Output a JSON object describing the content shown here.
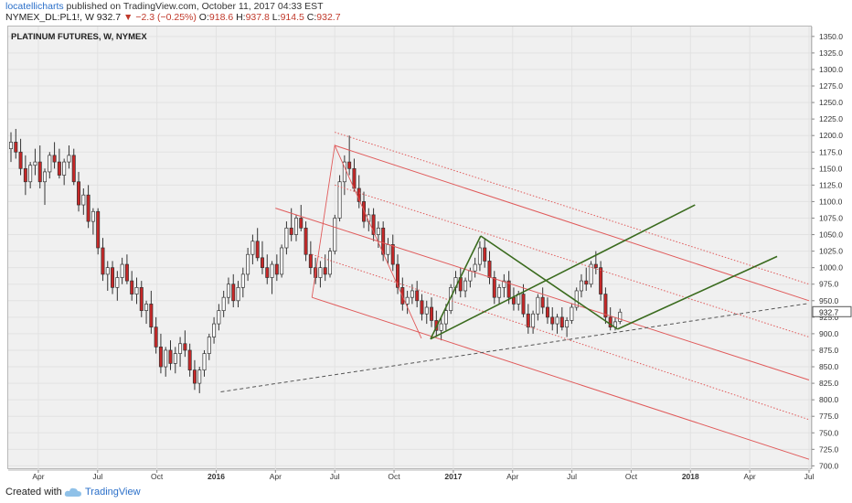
{
  "header": {
    "author": "locatellicharts",
    "published_text": "published on TradingView.com, October 11, 2017 04:33 EST",
    "symbol": "NYMEX_DL:PL1!, W",
    "last": "932.7",
    "change": "−2.3 (−0.25%)",
    "o_label": "O:",
    "o_value": "918.6",
    "h_label": "H:",
    "h_value": "937.8",
    "l_label": "L:",
    "l_value": "914.5",
    "c_label": "C:",
    "c_value": "932.7",
    "down_arrow": "▼"
  },
  "chart_title": "PLATINUM FUTURES, W, NYMEX",
  "footer": {
    "created_with": "Created with",
    "brand": "TradingView",
    "logo_icon": "tradingview-cloud-icon"
  },
  "colors": {
    "up_candle": "#ffffff",
    "down_candle": "#c62828",
    "pitchfork": "#e05a5a",
    "triangle": "#3a6b1e",
    "trendline": "#555555",
    "background": "#f0f0f0",
    "grid": "#e2e2e2"
  },
  "chart_data": {
    "type": "candlestick",
    "title": "PLATINUM FUTURES, W, NYMEX",
    "ylim": [
      695,
      1365
    ],
    "y_ticks": [
      700,
      725,
      750,
      775,
      800,
      825,
      850,
      875,
      900,
      925,
      950,
      975,
      1000,
      1025,
      1050,
      1075,
      1100,
      1125,
      1150,
      1175,
      1200,
      1225,
      1250,
      1275,
      1300,
      1325,
      1350
    ],
    "y_tick_labels": [
      "700.0",
      "725.0",
      "750.0",
      "775.0",
      "800.0",
      "825.0",
      "850.0",
      "875.0",
      "900.0",
      "925.0",
      "950.0",
      "975.0",
      "1000.0",
      "1025.0",
      "1050.0",
      "1075.0",
      "1100.0",
      "1125.0",
      "1150.0",
      "1175.0",
      "1200.0",
      "1225.0",
      "1250.0",
      "1275.0",
      "1300.0",
      "1325.0",
      "1350.0"
    ],
    "last_price_label": "932.7",
    "last_price": 932.7,
    "x_ticks": [
      {
        "label": "Apr",
        "week": 6
      },
      {
        "label": "Jul",
        "week": 19
      },
      {
        "label": "Oct",
        "week": 32
      },
      {
        "label": "2016",
        "week": 45
      },
      {
        "label": "Apr",
        "week": 58
      },
      {
        "label": "Jul",
        "week": 71
      },
      {
        "label": "Oct",
        "week": 84
      },
      {
        "label": "2017",
        "week": 97
      },
      {
        "label": "Apr",
        "week": 110
      },
      {
        "label": "Jul",
        "week": 123
      },
      {
        "label": "Oct",
        "week": 136
      },
      {
        "label": "2018",
        "week": 149
      },
      {
        "label": "Apr",
        "week": 162
      },
      {
        "label": "Jul",
        "week": 175
      }
    ],
    "x_week_range": [
      0,
      175
    ],
    "candles": [
      [
        1180,
        1205,
        1160,
        1190
      ],
      [
        1190,
        1210,
        1165,
        1175
      ],
      [
        1175,
        1195,
        1140,
        1150
      ],
      [
        1150,
        1170,
        1110,
        1130
      ],
      [
        1130,
        1160,
        1120,
        1155
      ],
      [
        1155,
        1180,
        1140,
        1160
      ],
      [
        1160,
        1185,
        1120,
        1130
      ],
      [
        1130,
        1150,
        1095,
        1145
      ],
      [
        1145,
        1175,
        1135,
        1170
      ],
      [
        1170,
        1190,
        1150,
        1160
      ],
      [
        1160,
        1180,
        1135,
        1140
      ],
      [
        1140,
        1165,
        1125,
        1160
      ],
      [
        1160,
        1185,
        1150,
        1170
      ],
      [
        1170,
        1180,
        1125,
        1130
      ],
      [
        1130,
        1145,
        1085,
        1095
      ],
      [
        1095,
        1120,
        1080,
        1110
      ],
      [
        1110,
        1125,
        1060,
        1070
      ],
      [
        1070,
        1090,
        1050,
        1085
      ],
      [
        1085,
        1090,
        1020,
        1030
      ],
      [
        1030,
        1045,
        980,
        990
      ],
      [
        990,
        1010,
        965,
        1000
      ],
      [
        1000,
        1010,
        960,
        970
      ],
      [
        970,
        995,
        950,
        985
      ],
      [
        985,
        1015,
        975,
        1005
      ],
      [
        1005,
        1020,
        975,
        980
      ],
      [
        980,
        995,
        950,
        960
      ],
      [
        960,
        985,
        945,
        970
      ],
      [
        970,
        980,
        925,
        935
      ],
      [
        935,
        950,
        915,
        945
      ],
      [
        945,
        965,
        900,
        910
      ],
      [
        910,
        925,
        870,
        880
      ],
      [
        880,
        900,
        840,
        850
      ],
      [
        850,
        880,
        835,
        875
      ],
      [
        875,
        890,
        845,
        855
      ],
      [
        855,
        880,
        840,
        870
      ],
      [
        870,
        895,
        850,
        885
      ],
      [
        885,
        905,
        865,
        875
      ],
      [
        875,
        885,
        835,
        845
      ],
      [
        845,
        860,
        815,
        825
      ],
      [
        825,
        850,
        810,
        845
      ],
      [
        845,
        875,
        835,
        870
      ],
      [
        870,
        900,
        860,
        895
      ],
      [
        895,
        925,
        885,
        915
      ],
      [
        915,
        945,
        905,
        935
      ],
      [
        935,
        965,
        925,
        955
      ],
      [
        955,
        985,
        945,
        975
      ],
      [
        975,
        990,
        940,
        950
      ],
      [
        950,
        980,
        940,
        970
      ],
      [
        970,
        1000,
        955,
        990
      ],
      [
        990,
        1030,
        980,
        1020
      ],
      [
        1020,
        1050,
        1005,
        1040
      ],
      [
        1040,
        1060,
        1010,
        1015
      ],
      [
        1015,
        1040,
        990,
        1000
      ],
      [
        1000,
        1020,
        975,
        985
      ],
      [
        985,
        1010,
        960,
        1005
      ],
      [
        1005,
        1020,
        980,
        990
      ],
      [
        990,
        1035,
        985,
        1030
      ],
      [
        1030,
        1070,
        1020,
        1060
      ],
      [
        1060,
        1090,
        1040,
        1050
      ],
      [
        1050,
        1080,
        1040,
        1075
      ],
      [
        1075,
        1095,
        1055,
        1060
      ],
      [
        1060,
        1070,
        1010,
        1020
      ],
      [
        1020,
        1040,
        990,
        1000
      ],
      [
        1000,
        1015,
        975,
        985
      ],
      [
        985,
        1010,
        970,
        1000
      ],
      [
        1000,
        1020,
        980,
        990
      ],
      [
        990,
        1030,
        985,
        1025
      ],
      [
        1025,
        1080,
        1020,
        1075
      ],
      [
        1075,
        1140,
        1070,
        1130
      ],
      [
        1130,
        1170,
        1110,
        1160
      ],
      [
        1160,
        1200,
        1140,
        1150
      ],
      [
        1150,
        1165,
        1115,
        1120
      ],
      [
        1120,
        1140,
        1090,
        1100
      ],
      [
        1100,
        1115,
        1060,
        1070
      ],
      [
        1070,
        1090,
        1055,
        1080
      ],
      [
        1080,
        1090,
        1040,
        1050
      ],
      [
        1050,
        1070,
        1030,
        1060
      ],
      [
        1060,
        1070,
        1010,
        1020
      ],
      [
        1020,
        1045,
        1005,
        1035
      ],
      [
        1035,
        1050,
        995,
        1005
      ],
      [
        1005,
        1020,
        960,
        970
      ],
      [
        970,
        985,
        935,
        945
      ],
      [
        945,
        965,
        930,
        955
      ],
      [
        955,
        975,
        945,
        965
      ],
      [
        965,
        980,
        940,
        950
      ],
      [
        950,
        960,
        920,
        930
      ],
      [
        930,
        950,
        915,
        940
      ],
      [
        940,
        955,
        910,
        920
      ],
      [
        920,
        935,
        895,
        905
      ],
      [
        905,
        925,
        890,
        915
      ],
      [
        915,
        945,
        905,
        935
      ],
      [
        935,
        975,
        930,
        970
      ],
      [
        970,
        995,
        960,
        985
      ],
      [
        985,
        1000,
        955,
        965
      ],
      [
        965,
        985,
        955,
        980
      ],
      [
        980,
        1000,
        970,
        995
      ],
      [
        995,
        1015,
        985,
        1005
      ],
      [
        1005,
        1040,
        995,
        1030
      ],
      [
        1030,
        1045,
        1000,
        1010
      ],
      [
        1010,
        1025,
        975,
        985
      ],
      [
        985,
        995,
        945,
        955
      ],
      [
        955,
        975,
        945,
        970
      ],
      [
        970,
        990,
        955,
        980
      ],
      [
        980,
        995,
        945,
        955
      ],
      [
        955,
        970,
        935,
        945
      ],
      [
        945,
        965,
        935,
        960
      ],
      [
        960,
        975,
        925,
        930
      ],
      [
        930,
        945,
        900,
        910
      ],
      [
        910,
        935,
        900,
        930
      ],
      [
        930,
        960,
        920,
        955
      ],
      [
        955,
        970,
        930,
        940
      ],
      [
        940,
        955,
        915,
        925
      ],
      [
        925,
        940,
        905,
        915
      ],
      [
        915,
        930,
        900,
        925
      ],
      [
        925,
        940,
        905,
        910
      ],
      [
        910,
        925,
        895,
        920
      ],
      [
        920,
        945,
        915,
        940
      ],
      [
        940,
        970,
        935,
        965
      ],
      [
        965,
        990,
        955,
        980
      ],
      [
        980,
        1000,
        965,
        975
      ],
      [
        975,
        1010,
        970,
        1005
      ],
      [
        1005,
        1025,
        990,
        1000
      ],
      [
        1000,
        1010,
        950,
        960
      ],
      [
        960,
        970,
        915,
        925
      ],
      [
        925,
        940,
        905,
        910
      ],
      [
        910,
        925,
        905,
        918
      ],
      [
        918.6,
        937.8,
        914.5,
        932.7
      ]
    ],
    "candle_first_week": 0,
    "candle_week_step": 1.06,
    "pitchfork": {
      "anchor_a": {
        "week": 66,
        "price": 955
      },
      "anchor_b": {
        "week": 71,
        "price": 1185
      },
      "anchor_c": {
        "week": 90,
        "price": 893
      },
      "lines": [
        {
          "style": "solid",
          "p1": {
            "week": 71,
            "price": 1185
          },
          "p2": {
            "week": 175,
            "price": 950
          }
        },
        {
          "style": "dotted",
          "p1": {
            "week": 71,
            "price": 1205
          },
          "p2": {
            "week": 175,
            "price": 975
          }
        },
        {
          "style": "dotted",
          "p1": {
            "week": 71,
            "price": 1125
          },
          "p2": {
            "week": 175,
            "price": 895
          }
        },
        {
          "style": "solid",
          "p1": {
            "week": 58,
            "price": 1090
          },
          "p2": {
            "week": 175,
            "price": 830
          }
        },
        {
          "style": "dotted",
          "p1": {
            "week": 66,
            "price": 1020
          },
          "p2": {
            "week": 175,
            "price": 770
          }
        },
        {
          "style": "solid",
          "p1": {
            "week": 66,
            "price": 955
          },
          "p2": {
            "week": 175,
            "price": 710
          }
        }
      ]
    },
    "triangle_lines": [
      {
        "p1": {
          "week": 92,
          "price": 892
        },
        "p2": {
          "week": 103,
          "price": 1048
        }
      },
      {
        "p1": {
          "week": 103,
          "price": 1048
        },
        "p2": {
          "week": 133,
          "price": 907
        }
      },
      {
        "p1": {
          "week": 92,
          "price": 892
        },
        "p2": {
          "week": 150,
          "price": 1095
        }
      },
      {
        "p1": {
          "week": 133,
          "price": 907
        },
        "p2": {
          "week": 168,
          "price": 1017
        }
      }
    ],
    "trendline": {
      "p1": {
        "week": 46,
        "price": 812
      },
      "p2": {
        "week": 175,
        "price": 946
      },
      "style": "dashed"
    }
  }
}
